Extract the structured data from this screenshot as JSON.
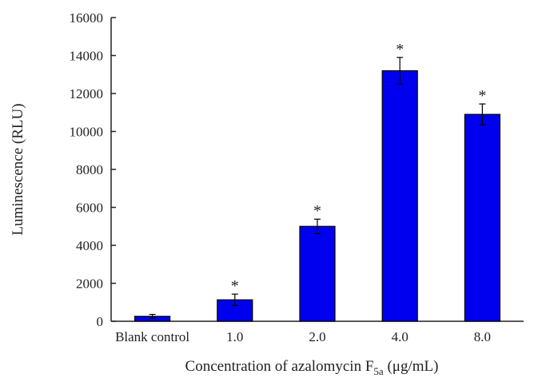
{
  "chart_data": {
    "type": "bar",
    "categories": [
      "Blank control",
      "1.0",
      "2.0",
      "4.0",
      "8.0"
    ],
    "values": [
      260,
      1130,
      5000,
      13200,
      10900
    ],
    "errors": [
      100,
      300,
      380,
      700,
      550
    ],
    "significance": [
      "",
      "*",
      "*",
      "*",
      "*"
    ],
    "xlabel": {
      "prefix": "Concentration of azalomycin F",
      "subscript": "5a",
      "suffix": " (μg/mL)"
    },
    "ylabel": "Luminescence (RLU)",
    "ylim": [
      0,
      16000
    ],
    "yticks": [
      0,
      2000,
      4000,
      6000,
      8000,
      10000,
      12000,
      14000,
      16000
    ],
    "bar_color": "#0000ee",
    "grid": false
  }
}
